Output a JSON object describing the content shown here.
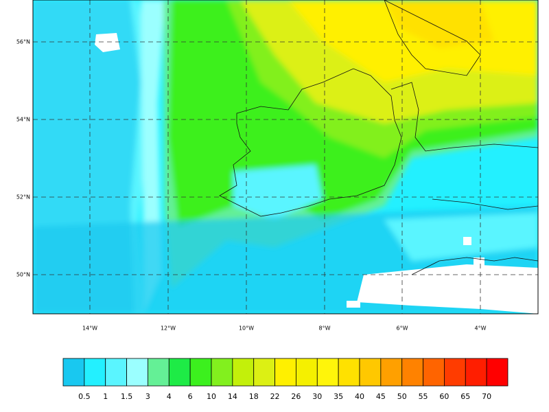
{
  "map": {
    "lat_labels": [
      "56°N",
      "54°N",
      "52°N",
      "50°N"
    ],
    "lon_labels": [
      "14°W",
      "12°W",
      "10°W",
      "8°W",
      "6°W",
      "4°W"
    ],
    "colorbar": {
      "colors": [
        "#19c8f0",
        "#23f0ff",
        "#5af5ff",
        "#9bffff",
        "#64f096",
        "#1eeb46",
        "#3cf01e",
        "#82f01e",
        "#c3f00a",
        "#dcf014",
        "#fff000",
        "#f5f000",
        "#fff50a",
        "#ffe100",
        "#ffc800",
        "#ffa000",
        "#ff8200",
        "#ff6400",
        "#ff3c00",
        "#ff1e00",
        "#ff0000"
      ],
      "levels": [
        "0.5",
        "1",
        "1.5",
        "3",
        "4",
        "6",
        "10",
        "14",
        "18",
        "22",
        "26",
        "30",
        "35",
        "40",
        "45",
        "50",
        "55",
        "60",
        "65",
        "70"
      ]
    }
  }
}
